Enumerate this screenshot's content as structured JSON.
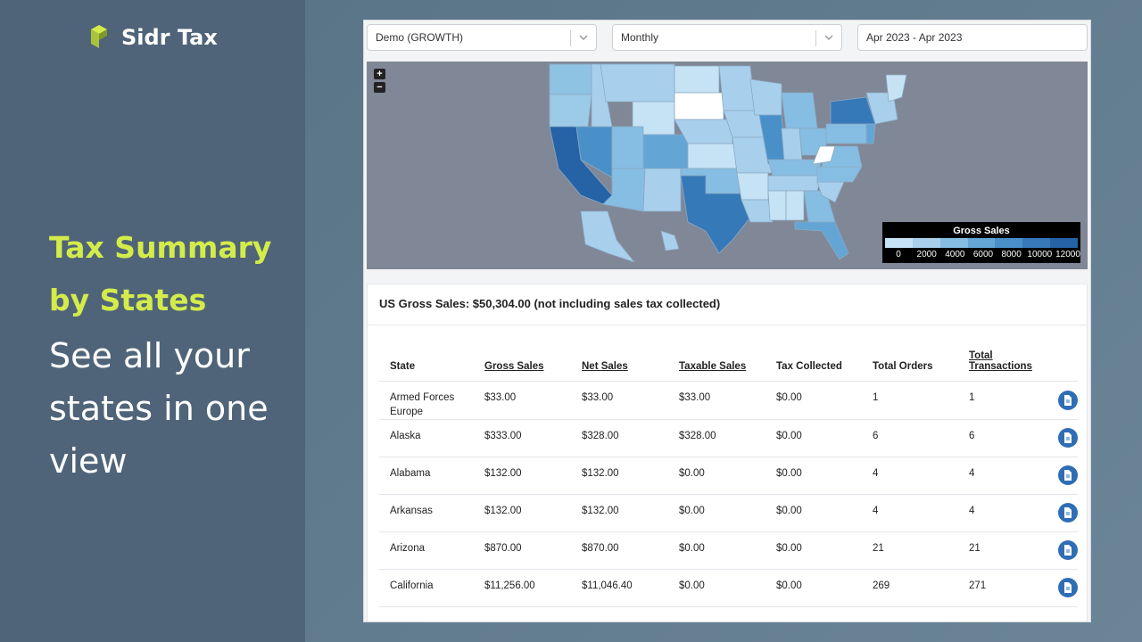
{
  "brand": {
    "name": "Sidr Tax",
    "accent": "#d4ec4a"
  },
  "promo": {
    "headline": "Tax Summary by States",
    "subline": "See all your states in one view"
  },
  "filters": {
    "account": "Demo (GROWTH)",
    "period": "Monthly",
    "date_range": "Apr 2023 - Apr 2023"
  },
  "map": {
    "zoom_in": "+",
    "zoom_out": "−",
    "legend": {
      "title": "Gross Sales",
      "ticks": [
        "0",
        "2000",
        "4000",
        "6000",
        "8000",
        "10000",
        "12000"
      ],
      "colors": [
        "#c6e2f5",
        "#a8d0ed",
        "#86bde3",
        "#63a6d6",
        "#4a90c8",
        "#3679b8",
        "#2563a6"
      ]
    }
  },
  "summary": {
    "text": "US Gross Sales: $50,304.00 (not including sales tax collected)"
  },
  "table": {
    "columns": [
      "State",
      "Gross Sales",
      "Net Sales",
      "Taxable Sales",
      "Tax Collected",
      "Total Orders",
      "Total Transactions"
    ],
    "rows": [
      {
        "state": "Armed Forces Europe",
        "gross": "$33.00",
        "net": "$33.00",
        "taxable": "$33.00",
        "tax": "$0.00",
        "orders": "1",
        "transactions": "1"
      },
      {
        "state": "Alaska",
        "gross": "$333.00",
        "net": "$328.00",
        "taxable": "$328.00",
        "tax": "$0.00",
        "orders": "6",
        "transactions": "6"
      },
      {
        "state": "Alabama",
        "gross": "$132.00",
        "net": "$132.00",
        "taxable": "$0.00",
        "tax": "$0.00",
        "orders": "4",
        "transactions": "4"
      },
      {
        "state": "Arkansas",
        "gross": "$132.00",
        "net": "$132.00",
        "taxable": "$0.00",
        "tax": "$0.00",
        "orders": "4",
        "transactions": "4"
      },
      {
        "state": "Arizona",
        "gross": "$870.00",
        "net": "$870.00",
        "taxable": "$0.00",
        "tax": "$0.00",
        "orders": "21",
        "transactions": "21"
      },
      {
        "state": "California",
        "gross": "$11,256.00",
        "net": "$11,046.40",
        "taxable": "$0.00",
        "tax": "$0.00",
        "orders": "269",
        "transactions": "271"
      }
    ]
  }
}
